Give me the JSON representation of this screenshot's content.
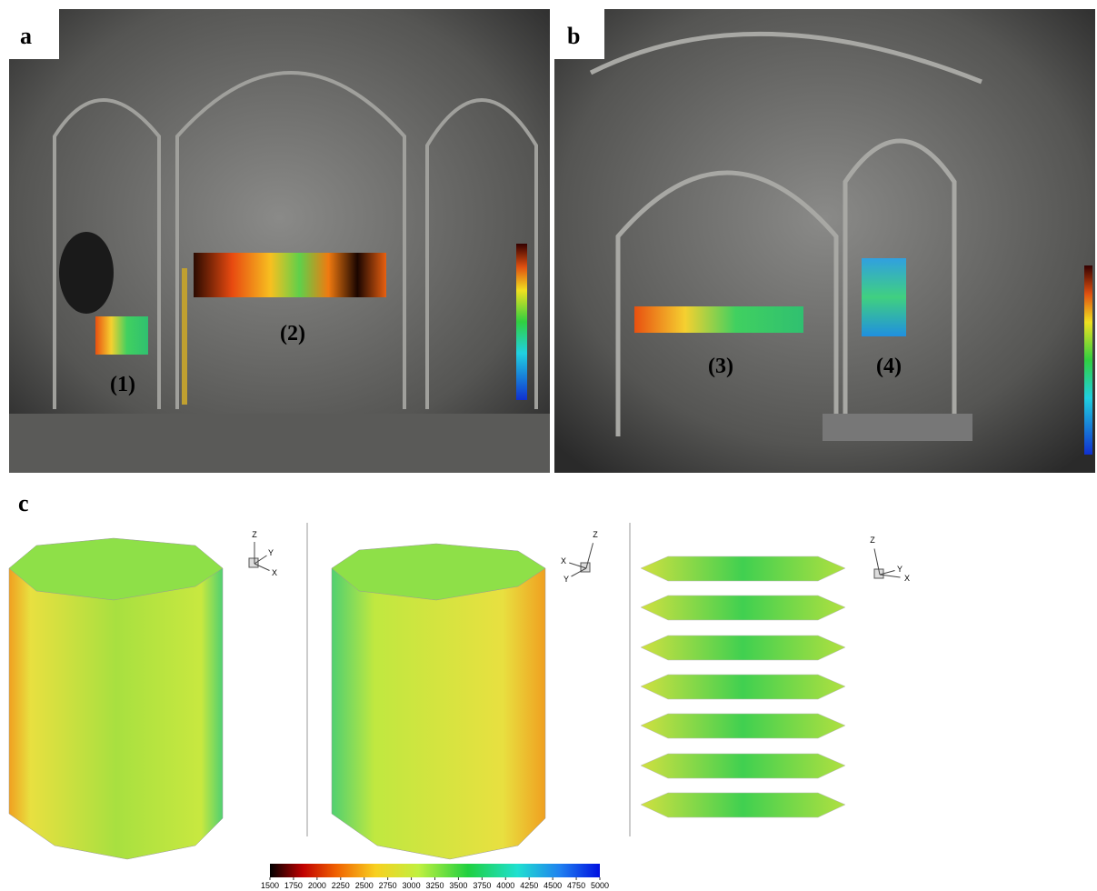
{
  "panels": [
    {
      "label": "a",
      "annotations": [
        "(1)",
        "(2)"
      ]
    },
    {
      "label": "b",
      "annotations": [
        "(3)",
        "(4)"
      ]
    },
    {
      "label": "c"
    }
  ],
  "triads": [
    [
      "Z",
      "Y",
      "X"
    ],
    [
      "Z",
      "X",
      "Y"
    ],
    [
      "Z",
      "Y",
      "X"
    ]
  ],
  "colorbar": {
    "lim": [
      1500,
      5000
    ],
    "ticks": [
      1500,
      1750,
      2000,
      2250,
      2500,
      2750,
      3000,
      3250,
      3500,
      3750,
      4000,
      4250,
      4500,
      4750,
      5000
    ]
  }
}
